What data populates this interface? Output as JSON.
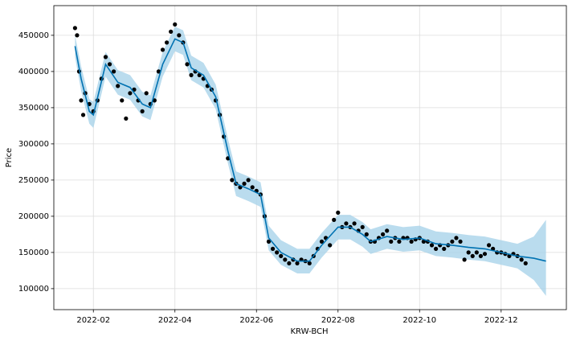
{
  "chart_data": {
    "type": "forecast",
    "xlabel": "KRW-BCH",
    "ylabel": "Price",
    "xlim": [
      1.03,
      13.6
    ],
    "ylim": [
      71000,
      491000
    ],
    "xticks": [
      {
        "value": 2,
        "label": "2022-02"
      },
      {
        "value": 4,
        "label": "2022-04"
      },
      {
        "value": 6,
        "label": "2022-06"
      },
      {
        "value": 8,
        "label": "2022-08"
      },
      {
        "value": 10,
        "label": "2022-10"
      },
      {
        "value": 12,
        "label": "2022-12"
      }
    ],
    "yticks": [
      100000,
      150000,
      200000,
      250000,
      300000,
      350000,
      400000,
      450000
    ],
    "grid": true,
    "observed": {
      "color": "#000000",
      "x": [
        1.55,
        1.6,
        1.65,
        1.7,
        1.75,
        1.8,
        1.9,
        2.0,
        2.1,
        2.2,
        2.3,
        2.4,
        2.5,
        2.6,
        2.7,
        2.8,
        2.9,
        3.0,
        3.1,
        3.2,
        3.3,
        3.4,
        3.5,
        3.6,
        3.7,
        3.8,
        3.9,
        4.0,
        4.1,
        4.2,
        4.3,
        4.4,
        4.5,
        4.6,
        4.7,
        4.8,
        4.9,
        5.0,
        5.1,
        5.2,
        5.3,
        5.4,
        5.5,
        5.6,
        5.7,
        5.8,
        5.9,
        6.0,
        6.1,
        6.2,
        6.3,
        6.4,
        6.5,
        6.6,
        6.7,
        6.8,
        6.9,
        7.0,
        7.1,
        7.2,
        7.3,
        7.4,
        7.5,
        7.6,
        7.7,
        7.8,
        7.9,
        8.0,
        8.1,
        8.2,
        8.3,
        8.4,
        8.5,
        8.6,
        8.7,
        8.8,
        8.9,
        9.0,
        9.1,
        9.2,
        9.3,
        9.4,
        9.5,
        9.6,
        9.7,
        9.8,
        9.9,
        10.0,
        10.1,
        10.2,
        10.3,
        10.4,
        10.5,
        10.6,
        10.7,
        10.8,
        10.9,
        11.0,
        11.1,
        11.2,
        11.3,
        11.4,
        11.5,
        11.6,
        11.7,
        11.8,
        11.9,
        12.0,
        12.1,
        12.2,
        12.3,
        12.4,
        12.5,
        12.6
      ],
      "values": [
        460000,
        450000,
        400000,
        360000,
        340000,
        370000,
        355000,
        345000,
        360000,
        390000,
        420000,
        410000,
        400000,
        380000,
        360000,
        335000,
        370000,
        375000,
        360000,
        345000,
        370000,
        355000,
        360000,
        400000,
        430000,
        440000,
        455000,
        465000,
        450000,
        440000,
        410000,
        395000,
        400000,
        395000,
        390000,
        380000,
        375000,
        360000,
        340000,
        310000,
        280000,
        250000,
        245000,
        240000,
        245000,
        250000,
        240000,
        235000,
        230000,
        200000,
        165000,
        155000,
        150000,
        145000,
        140000,
        135000,
        140000,
        135000,
        140000,
        138000,
        135000,
        145000,
        155000,
        165000,
        170000,
        160000,
        195000,
        205000,
        185000,
        190000,
        185000,
        190000,
        180000,
        185000,
        175000,
        165000,
        165000,
        170000,
        175000,
        180000,
        165000,
        170000,
        165000,
        170000,
        170000,
        165000,
        168000,
        170000,
        165000,
        165000,
        160000,
        155000,
        160000,
        155000,
        160000,
        165000,
        170000,
        165000,
        140000,
        150000,
        145000,
        150000,
        145000,
        148000,
        160000,
        155000,
        150000,
        150000,
        148000,
        145000,
        148000,
        145000,
        140000,
        135000
      ]
    },
    "forecast": {
      "color": "#0072b2",
      "band_color": "#a9d3ea",
      "x": [
        1.55,
        1.7,
        1.9,
        2.0,
        2.3,
        2.6,
        2.9,
        3.2,
        3.4,
        3.7,
        4.0,
        4.2,
        4.4,
        4.7,
        5.0,
        5.3,
        5.5,
        5.8,
        6.1,
        6.3,
        6.6,
        7.0,
        7.3,
        7.6,
        8.0,
        8.3,
        8.6,
        8.8,
        9.2,
        9.6,
        10.0,
        10.4,
        10.8,
        11.2,
        11.6,
        12.0,
        12.4,
        12.8,
        13.1
      ],
      "values": [
        435000,
        390000,
        345000,
        340000,
        410000,
        385000,
        378000,
        355000,
        350000,
        410000,
        445000,
        440000,
        405000,
        395000,
        365000,
        290000,
        245000,
        238000,
        230000,
        170000,
        150000,
        138000,
        138000,
        160000,
        185000,
        185000,
        175000,
        165000,
        172000,
        168000,
        170000,
        162000,
        160000,
        157000,
        155000,
        150000,
        145000,
        142000,
        138000
      ],
      "lower": [
        420000,
        373000,
        328000,
        322000,
        393000,
        368000,
        361000,
        338000,
        333000,
        393000,
        428000,
        423000,
        388000,
        378000,
        348000,
        273000,
        228000,
        221000,
        213000,
        153000,
        133000,
        121000,
        121000,
        143000,
        168000,
        168000,
        158000,
        148000,
        155000,
        151000,
        153000,
        145000,
        143000,
        140000,
        138000,
        133000,
        128000,
        112000,
        90000
      ],
      "upper": [
        450000,
        407000,
        362000,
        358000,
        427000,
        402000,
        395000,
        372000,
        367000,
        427000,
        462000,
        457000,
        422000,
        412000,
        382000,
        307000,
        262000,
        255000,
        247000,
        187000,
        167000,
        155000,
        155000,
        177000,
        202000,
        202000,
        192000,
        182000,
        189000,
        185000,
        187000,
        179000,
        177000,
        174000,
        172000,
        167000,
        162000,
        172000,
        195000
      ]
    }
  }
}
